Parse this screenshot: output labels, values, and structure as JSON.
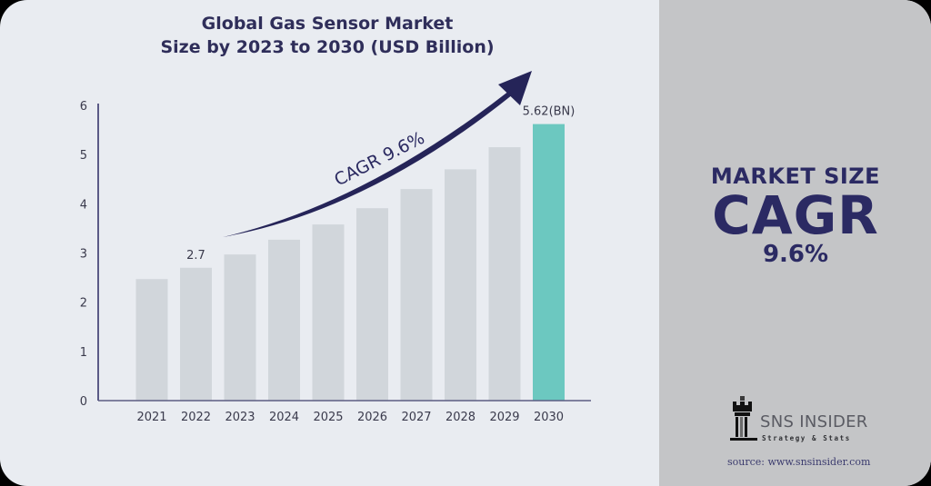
{
  "title": {
    "line1": "Global Gas Sensor Market",
    "line2": "Size by 2023 to 2030 (USD Billion)"
  },
  "chart_data": {
    "type": "bar",
    "title": "Global Gas Sensor Market Size by 2023 to 2030 (USD Billion)",
    "xlabel": "",
    "ylabel": "",
    "categories": [
      "2021",
      "2022",
      "2023",
      "2024",
      "2025",
      "2026",
      "2027",
      "2028",
      "2029",
      "2030"
    ],
    "values": [
      2.47,
      2.7,
      2.97,
      3.27,
      3.58,
      3.91,
      4.3,
      4.7,
      5.15,
      5.62
    ],
    "ylim": [
      0,
      6
    ],
    "yticks": [
      0,
      1,
      2,
      3,
      4,
      5,
      6
    ],
    "grid": false,
    "bar_color": "#d1d6db",
    "highlight_color": "#6cc8c0",
    "highlight_category": "2030",
    "data_labels": [
      {
        "category": "2022",
        "text": "2.7"
      },
      {
        "category": "2030",
        "text": "5.62(BN)"
      }
    ],
    "annotation": {
      "text": "CAGR  9.6%",
      "type": "rising-arrow",
      "from": "2023",
      "to": "2030"
    }
  },
  "side_panel": {
    "label": "MARKET SIZE",
    "metric": "CAGR",
    "value": "9.6%"
  },
  "brand": {
    "name": "SNS INSIDER",
    "tagline": "Strategy & Stats",
    "icon": "chess-rook-icon",
    "source": "source: www.snsinsider.com"
  },
  "colors": {
    "navy": "#2b2a63",
    "teal": "#6cc8c0",
    "bar_gray": "#d1d6db",
    "background": "#e9ecf1",
    "panel": "#c4c5c7"
  }
}
